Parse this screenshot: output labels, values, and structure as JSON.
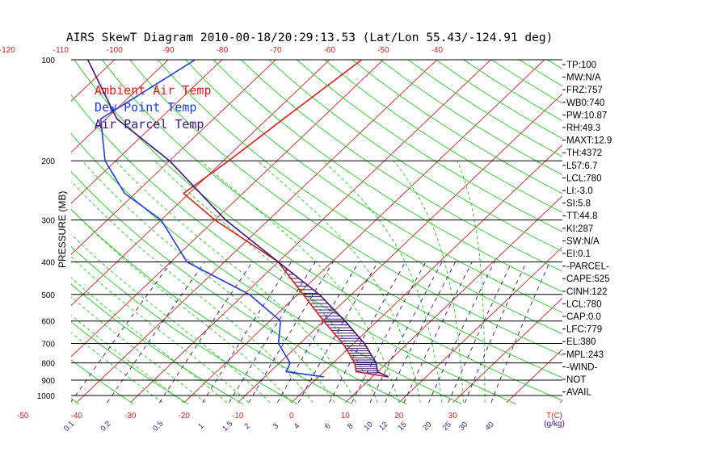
{
  "chart_data": {
    "type": "line",
    "title": "AIRS SkewT Diagram 2010-00-18/20:29:13.53 (Lat/Lon 55.43/-124.91 deg)",
    "ylabel": "PRESSURE (MB)",
    "xlabel_bottom_temp_unit": "T(C)",
    "xlabel_bottom_mixing_unit": "(g/kg)",
    "pressure_ticks": [
      100,
      200,
      300,
      400,
      500,
      600,
      700,
      800,
      900,
      1000
    ],
    "pressure_range": [
      100,
      1050
    ],
    "top_temp_ticks": [
      -120,
      -110,
      -100,
      -90,
      -80,
      -70,
      -60,
      -50,
      -40
    ],
    "bottom_temp_ticks": [
      -50,
      -40,
      -30,
      -20,
      -10,
      0,
      10,
      20,
      30
    ],
    "mixing_ratio_ticks": [
      "0.1",
      "0.2",
      "0.5",
      "1",
      "1.5",
      "2",
      "3",
      "4",
      "6",
      "8",
      "10",
      "12",
      "15",
      "20",
      "25",
      "30",
      "40"
    ],
    "legend": [
      {
        "label": "Ambient Air Temp",
        "color": "#d81e1e"
      },
      {
        "label": "Dew Point Temp",
        "color": "#1e3cd8"
      },
      {
        "label": "Air Parcel Temp",
        "color": "#3c147a"
      }
    ],
    "series": [
      {
        "name": "Ambient Air Temp",
        "color": "#d81e1e",
        "points": [
          {
            "p": 100,
            "t": -54
          },
          {
            "p": 150,
            "t": -57
          },
          {
            "p": 200,
            "t": -59
          },
          {
            "p": 250,
            "t": -61
          },
          {
            "p": 300,
            "t": -50
          },
          {
            "p": 400,
            "t": -30
          },
          {
            "p": 500,
            "t": -19
          },
          {
            "p": 600,
            "t": -10
          },
          {
            "p": 700,
            "t": -2
          },
          {
            "p": 800,
            "t": 4
          },
          {
            "p": 850,
            "t": 6
          },
          {
            "p": 880,
            "t": 13
          }
        ]
      },
      {
        "name": "Dew Point Temp",
        "color": "#1e3cd8",
        "points": [
          {
            "p": 100,
            "t": -85
          },
          {
            "p": 150,
            "t": -91
          },
          {
            "p": 200,
            "t": -82
          },
          {
            "p": 250,
            "t": -72
          },
          {
            "p": 300,
            "t": -60
          },
          {
            "p": 400,
            "t": -47
          },
          {
            "p": 500,
            "t": -29
          },
          {
            "p": 600,
            "t": -18
          },
          {
            "p": 700,
            "t": -14
          },
          {
            "p": 800,
            "t": -8
          },
          {
            "p": 850,
            "t": -7
          },
          {
            "p": 880,
            "t": 1
          }
        ]
      },
      {
        "name": "Air Parcel Temp",
        "color": "#3c147a",
        "points": [
          {
            "p": 100,
            "t": -105
          },
          {
            "p": 150,
            "t": -88
          },
          {
            "p": 200,
            "t": -70
          },
          {
            "p": 300,
            "t": -48
          },
          {
            "p": 400,
            "t": -30
          },
          {
            "p": 500,
            "t": -16
          },
          {
            "p": 600,
            "t": -6
          },
          {
            "p": 700,
            "t": 2
          },
          {
            "p": 800,
            "t": 8
          },
          {
            "p": 850,
            "t": 10
          },
          {
            "p": 880,
            "t": 13
          }
        ]
      }
    ]
  },
  "sidebar": {
    "items": [
      "TP:100",
      "MW:N/A",
      "FRZ:757",
      "WB0:740",
      "PW:10.87",
      "RH:49.3",
      "MAXT:12.9",
      "TH:4372",
      "L57:6.7",
      "LCL:780",
      "LI:-3.0",
      "SI:5.8",
      "TT:44.8",
      "KI:287",
      "SW:N/A",
      "EI:0.1",
      "-PARCEL-",
      "CAPE:525",
      "CINH:122",
      "LCL:780",
      "CAP:0.0",
      "LFC:779",
      "EL:380",
      "MPL:243",
      "-WIND-",
      "NOT",
      "AVAIL"
    ]
  },
  "colors": {
    "isotherm": "#cc2222",
    "dry_adiabat": "#22cc22",
    "moist_adiabat": "#22cc22",
    "mixing_ratio": "#3c147a",
    "isobar": "#000000",
    "hatch": "#3c147a"
  }
}
